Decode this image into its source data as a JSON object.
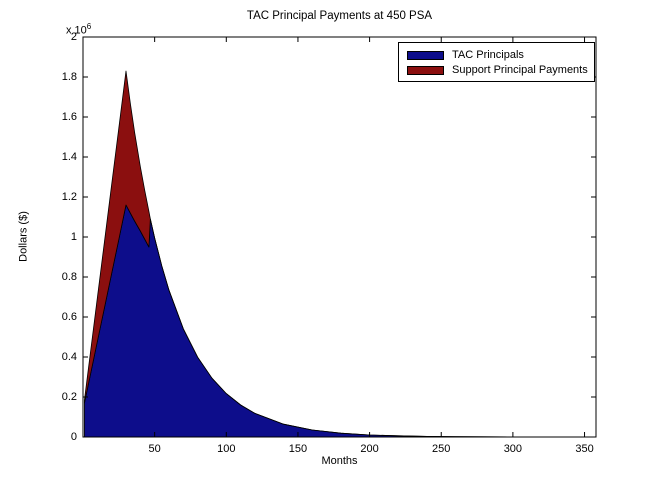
{
  "chart_data": {
    "type": "area",
    "stacked": true,
    "title": "TAC Principal Payments at 450 PSA",
    "xlabel": "Months",
    "ylabel": "Dollars ($)",
    "y_exponent_base": "x 10",
    "y_exponent_power": "6",
    "xlim": [
      0,
      358
    ],
    "ylim": [
      0,
      2000000
    ],
    "grid": false,
    "legend_position": "top-right",
    "xticks": [
      50,
      100,
      150,
      200,
      250,
      300,
      350
    ],
    "yticks": [
      0,
      200000,
      400000,
      600000,
      800000,
      1000000,
      1200000,
      1400000,
      1600000,
      1800000,
      2000000
    ],
    "ytick_labels": [
      "0",
      "0.2",
      "0.4",
      "0.6",
      "0.8",
      "1",
      "1.2",
      "1.4",
      "1.6",
      "1.8",
      "2"
    ],
    "x": [
      1,
      5,
      10,
      15,
      20,
      25,
      30,
      33,
      36,
      40,
      43,
      46,
      47,
      50,
      55,
      60,
      70,
      80,
      90,
      100,
      110,
      120,
      140,
      160,
      180,
      200,
      220,
      240,
      260,
      280,
      300,
      330,
      358
    ],
    "series": [
      {
        "name": "TAC Principals",
        "color": "#0D0D8B",
        "values": [
          170000,
          306000,
          477000,
          647000,
          818000,
          988000,
          1160000,
          1120000,
          1080000,
          1030000,
          990000,
          950000,
          1090000,
          995000,
          855000,
          734000,
          541000,
          399000,
          294000,
          217000,
          160000,
          118000,
          64000,
          35000,
          19000,
          10000,
          6000,
          3000,
          2000,
          1000,
          500,
          200,
          100
        ]
      },
      {
        "name": "Support Principal Payments",
        "color": "#8B0F0F",
        "values": [
          15000,
          105000,
          218000,
          331000,
          444000,
          557000,
          670000,
          550000,
          444000,
          322000,
          246000,
          178000,
          0,
          0,
          0,
          0,
          0,
          0,
          0,
          0,
          0,
          0,
          0,
          0,
          0,
          0,
          0,
          0,
          0,
          0,
          0,
          0,
          0
        ]
      }
    ],
    "axis_color": "#000000",
    "edge_color": "#000000",
    "background_color": "#ffffff"
  }
}
